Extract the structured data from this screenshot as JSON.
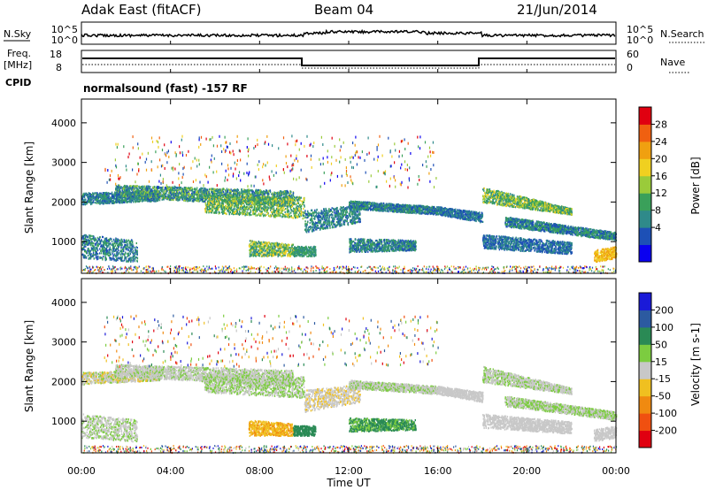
{
  "header": {
    "station": "Adak East (fitACF)",
    "beam": "Beam 04",
    "date": "21/Jun/2014"
  },
  "top_panels": {
    "nsky_label": "N.Sky",
    "nsearch_label": "N.Search",
    "nsky_ticks": [
      "10^5",
      "10^0"
    ],
    "right_ticks_noise": [
      "10^5",
      "10^0"
    ],
    "freq_label": "Freq.",
    "freq_unit": "[MHz]",
    "freq_ticks": [
      "18",
      "8"
    ],
    "nave_label": "Nave",
    "nave_ticks": [
      "60",
      "0"
    ],
    "cpid_label": "CPID",
    "cpid_text": "normalsound (fast) -157 RF"
  },
  "chart_data": [
    {
      "type": "heatmap",
      "name": "power",
      "ylabel": "Slant Range [km]",
      "yticks": [
        "1000",
        "2000",
        "3000",
        "4000"
      ],
      "ylim": [
        200,
        4600
      ],
      "xlim": [
        0,
        24
      ],
      "colorbar_label": "Power [dB]",
      "colorbar_ticks": [
        "4",
        "8",
        "12",
        "16",
        "20",
        "24",
        "28"
      ],
      "colorbar_colors": [
        "#0a00f0",
        "#1d50b6",
        "#2f8a8a",
        "#3aa05a",
        "#9acb3a",
        "#f0d020",
        "#f0a010",
        "#f06010",
        "#e00010"
      ]
    },
    {
      "type": "heatmap",
      "name": "velocity",
      "ylabel": "Slant Range [km]",
      "yticks": [
        "1000",
        "2000",
        "3000",
        "4000"
      ],
      "ylim": [
        200,
        4600
      ],
      "xlim": [
        0,
        24
      ],
      "xlabel": "Time UT",
      "xticks": [
        "00:00",
        "04:00",
        "08:00",
        "12:00",
        "16:00",
        "20:00",
        "00:00"
      ],
      "colorbar_label": "Velocity [m s-1]",
      "colorbar_ticks": [
        "200",
        "100",
        "50",
        "15",
        "-15",
        "-50",
        "-100",
        "-200"
      ],
      "colorbar_colors": [
        "#1a1ad8",
        "#2c5aa0",
        "#2a8a55",
        "#7ccc40",
        "#c8c8c8",
        "#f0c020",
        "#f08a10",
        "#f05010",
        "#e00010"
      ]
    }
  ]
}
